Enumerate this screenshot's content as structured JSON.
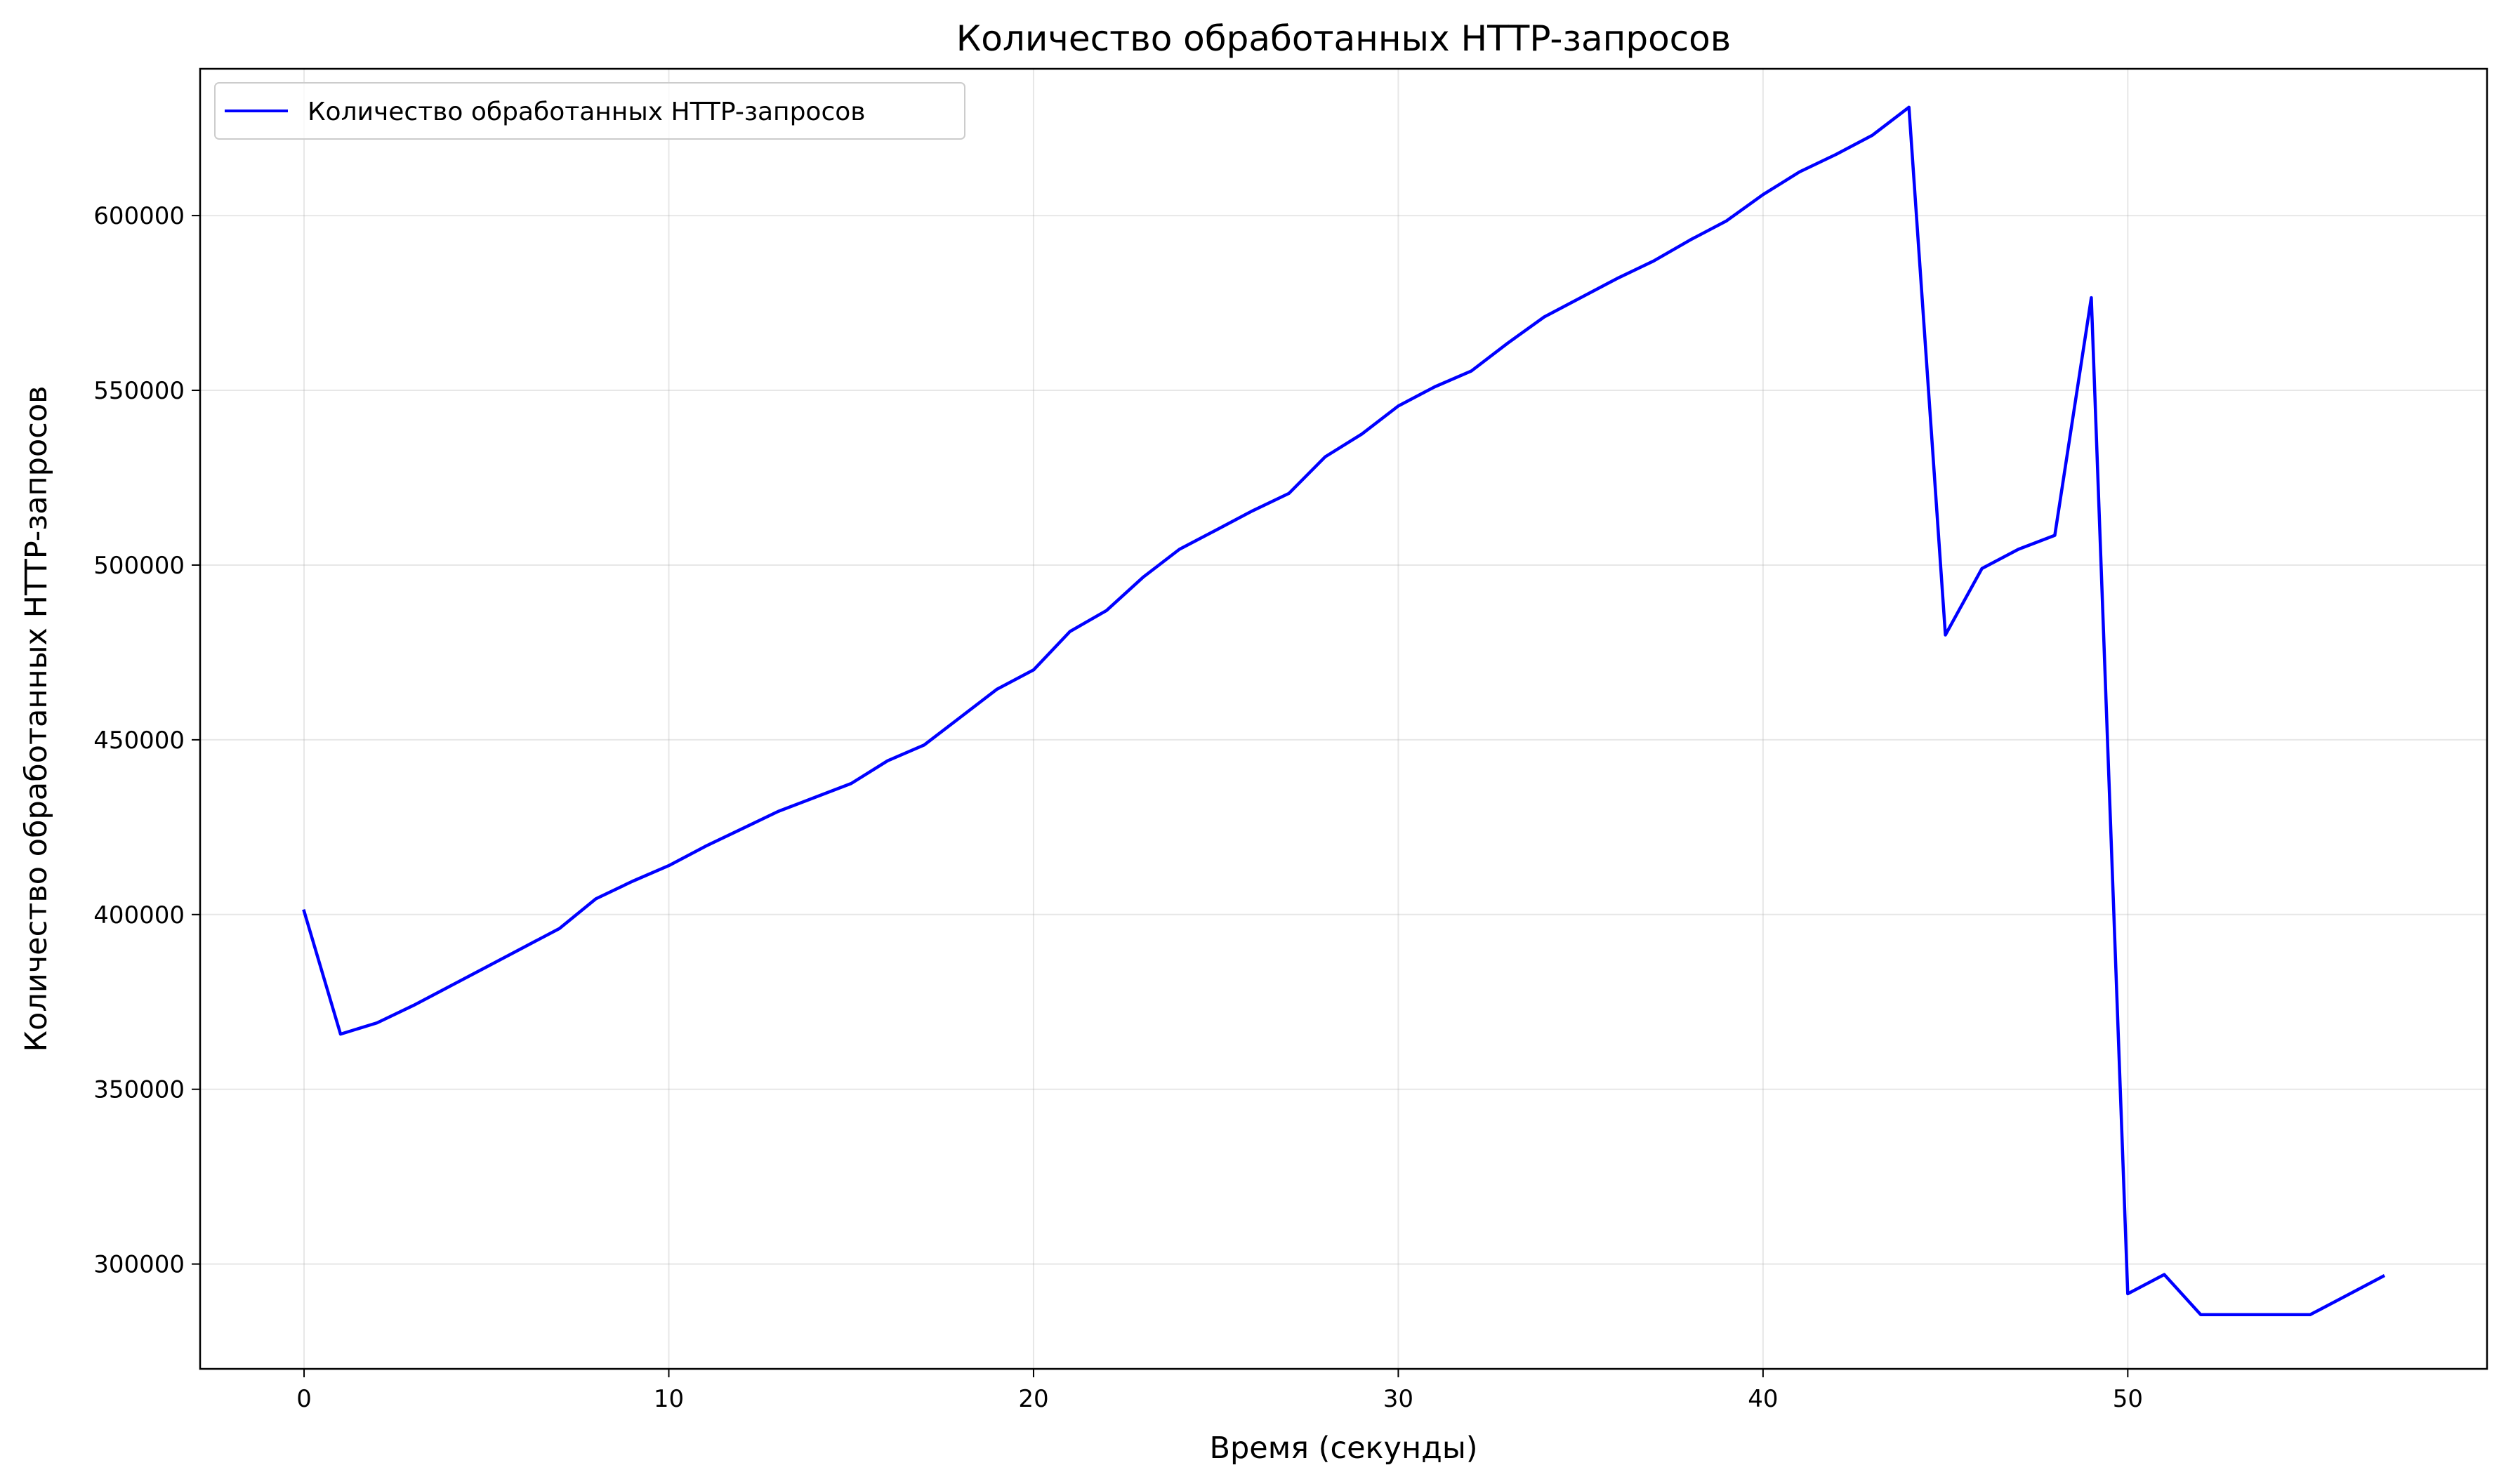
{
  "chart_data": {
    "type": "line",
    "title": "Количество обработанных HTTP-запросов",
    "xlabel": "Время (секунды)",
    "ylabel": "Количество обработанных HTTP-запросов",
    "xlim": [
      -2.85,
      59.85
    ],
    "ylim": [
      270000,
      642000
    ],
    "xticks": [
      0,
      10,
      20,
      30,
      40,
      50
    ],
    "yticks": [
      300000,
      350000,
      400000,
      450000,
      500000,
      550000,
      600000
    ],
    "grid": true,
    "legend_position": "top-left",
    "series": [
      {
        "name": "Количество обработанных HTTP-запросов",
        "color": "#0000ff",
        "x": [
          0,
          1,
          2,
          3,
          4,
          5,
          6,
          7,
          8,
          9,
          10,
          11,
          12,
          13,
          14,
          15,
          16,
          17,
          18,
          19,
          20,
          21,
          22,
          23,
          24,
          25,
          26,
          27,
          28,
          29,
          30,
          31,
          32,
          33,
          34,
          35,
          36,
          37,
          38,
          39,
          40,
          41,
          42,
          43,
          44,
          45,
          46,
          47,
          48,
          49,
          50,
          51,
          52,
          53,
          54,
          55,
          56,
          57
        ],
        "y": [
          401000,
          365800,
          369000,
          374000,
          379500,
          385000,
          390500,
          396000,
          404500,
          409500,
          414000,
          419500,
          424500,
          429500,
          433500,
          437500,
          444000,
          448500,
          456500,
          464500,
          470000,
          481000,
          487000,
          496500,
          504500,
          510000,
          515500,
          520500,
          531000,
          537500,
          545500,
          551000,
          555500,
          563500,
          571000,
          576500,
          582000,
          587000,
          593000,
          598500,
          606000,
          612500,
          617500,
          623000,
          631000,
          480000,
          499000,
          504500,
          508500,
          576500,
          291500,
          297000,
          285500,
          285500,
          285500,
          285500,
          291000,
          296500
        ]
      }
    ]
  }
}
